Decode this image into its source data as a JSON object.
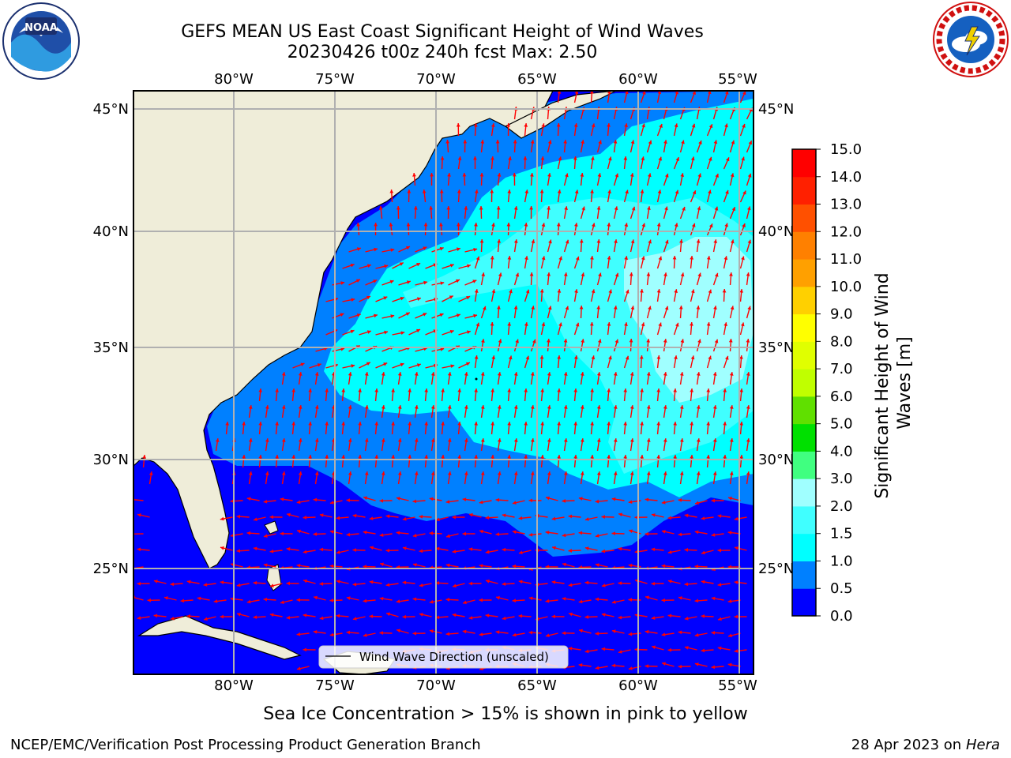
{
  "header": {
    "title_line1": "GEFS MEAN US East Coast Significant Height of Wind Waves",
    "title_line2": "20230426 t00z 240h fcst   Max: 2.50"
  },
  "logos": {
    "left": "noaa-logo",
    "right": "national-weather-service-logo"
  },
  "map": {
    "lon_labels": [
      "80°W",
      "75°W",
      "70°W",
      "65°W",
      "60°W",
      "55°W"
    ],
    "lat_labels": [
      "45°N",
      "40°N",
      "35°N",
      "30°N",
      "25°N"
    ],
    "legend_label": "Wind Wave Direction (unscaled)",
    "colors": {
      "land": "#efedd9",
      "arrow": "#ff0000",
      "grid": "#b0b0b0"
    }
  },
  "colorbar": {
    "label": "Significant Height of Wind Waves [m]",
    "ticks": [
      "0.0",
      "0.5",
      "1.0",
      "1.5",
      "2.0",
      "3.0",
      "4.0",
      "5.0",
      "6.0",
      "7.0",
      "8.0",
      "9.0",
      "10.0",
      "11.0",
      "12.0",
      "13.0",
      "14.0",
      "15.0"
    ],
    "colors": [
      "#0000ff",
      "#0080ff",
      "#00ffff",
      "#40ffff",
      "#a0ffff",
      "#40ff80",
      "#00e000",
      "#60e000",
      "#c0ff00",
      "#e0ff00",
      "#ffff00",
      "#ffd000",
      "#ffa000",
      "#ff8000",
      "#ff5000",
      "#ff2000",
      "#ff0000"
    ]
  },
  "footer": {
    "ice_note": "Sea Ice Concentration > 15% is shown in pink to yellow",
    "credit": "NCEP/EMC/Verification Post Processing Product Generation Branch",
    "date": "28 Apr 2023 on ",
    "machine": "Hera"
  }
}
